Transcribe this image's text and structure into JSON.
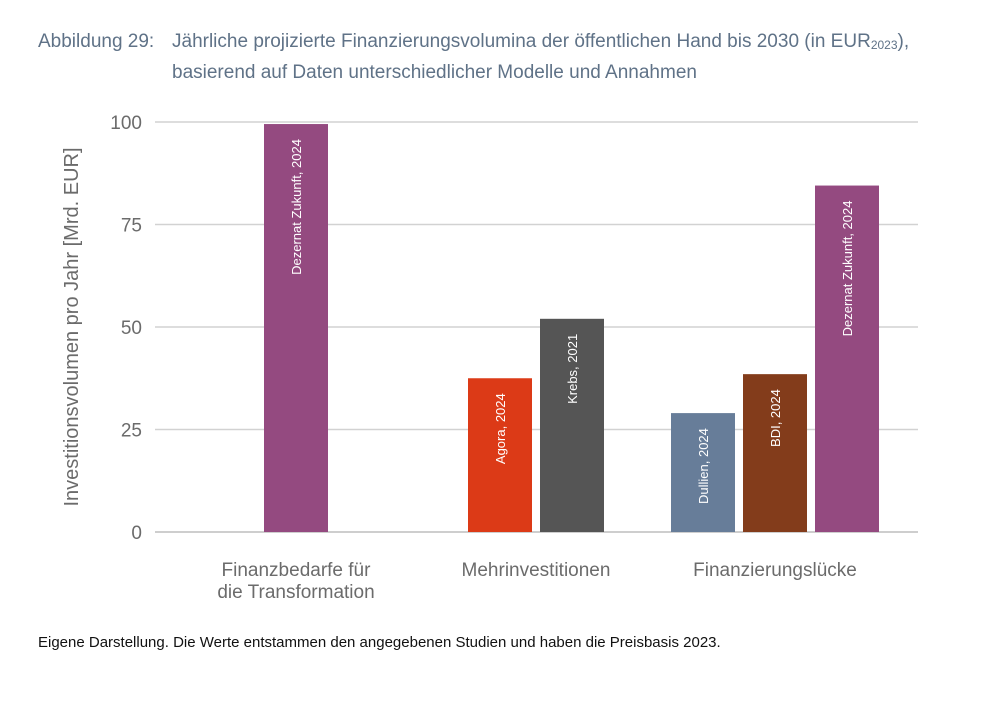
{
  "caption": {
    "label": "Abbildung 29:",
    "title_main": "Jährliche projizierte Finanzierungsvolumina der öffentlichen Hand bis 2030 (in EUR",
    "title_sub": "2023",
    "title_end": "),",
    "title_line2": "basierend auf Daten unterschiedlicher Modelle und Annahmen"
  },
  "chart_data": {
    "type": "bar",
    "ylabel": "Investitionsvolumen pro Jahr [Mrd. EUR]",
    "ylim": [
      0,
      100
    ],
    "yticks": [
      0,
      25,
      50,
      75,
      100
    ],
    "grid": true,
    "groups": [
      {
        "label_lines": [
          "Finanzbedarfe für",
          "die Transformation"
        ],
        "bars": [
          {
            "label": "Dezernat Zukunft, 2024",
            "value": 99.5,
            "color": "#944a80"
          }
        ]
      },
      {
        "label_lines": [
          "Mehrinvestitionen"
        ],
        "bars": [
          {
            "label": "Agora, 2024",
            "value": 37.5,
            "color": "#dc3a17"
          },
          {
            "label": "Krebs, 2021",
            "value": 52,
            "color": "#555555"
          }
        ]
      },
      {
        "label_lines": [
          "Finanzierungslücke"
        ],
        "bars": [
          {
            "label": "Dullien, 2024",
            "value": 29,
            "color": "#677d99"
          },
          {
            "label": "BDI, 2024",
            "value": 38.5,
            "color": "#833c1b"
          },
          {
            "label": "Dezernat Zukunft, 2024",
            "value": 84.5,
            "color": "#944a80"
          }
        ]
      }
    ]
  },
  "footnote": "Eigene Darstellung. Die Werte entstammen den angegebenen Studien und haben die Preisbasis 2023."
}
